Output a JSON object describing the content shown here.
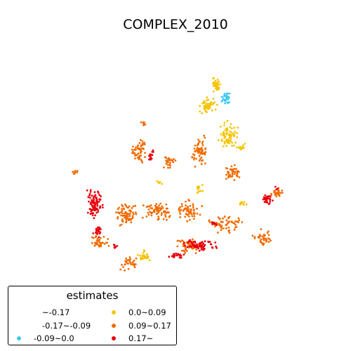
{
  "chart_data": {
    "type": "scatter",
    "title": "COMPLEX_2010",
    "legend": {
      "title": "estimates",
      "position": "bottom-left",
      "entries": [
        {
          "label": "~-0.17",
          "color": "#ffffff"
        },
        {
          "label": "-0.17~-0.09",
          "color": "#ffffff"
        },
        {
          "label": "-0.09~0.0",
          "color": "#3ec9f0"
        },
        {
          "label": "0.0~0.09",
          "color": "#f5c400"
        },
        {
          "label": "0.09~0.17",
          "color": "#f26b00"
        },
        {
          "label": "0.17~",
          "color": "#e8000b"
        }
      ]
    },
    "axes_visible": false,
    "grid": false
  }
}
